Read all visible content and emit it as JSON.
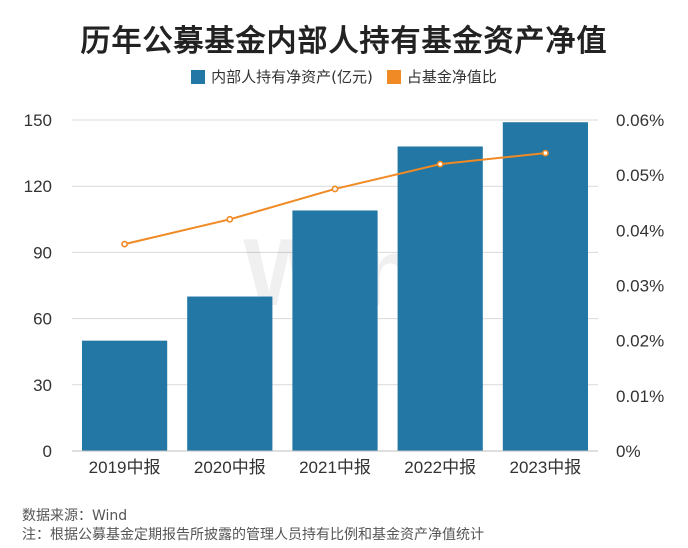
{
  "chart_data": {
    "type": "bar+line",
    "title": "历年公募基金内部人持有基金资产净值",
    "categories": [
      "2019中报",
      "2020中报",
      "2021中报",
      "2022中报",
      "2023中报"
    ],
    "series": [
      {
        "name": "内部人持有净资产(亿元)",
        "type": "bar",
        "axis": "left",
        "color": "#2277a4",
        "values": [
          50,
          70,
          109,
          138,
          149
        ]
      },
      {
        "name": "占基金净值比",
        "type": "line",
        "axis": "right",
        "color": "#f08a24",
        "values": [
          0.0375,
          0.042,
          0.0475,
          0.052,
          0.054
        ]
      }
    ],
    "left_axis": {
      "min": 0,
      "max": 150,
      "ticks": [
        "0",
        "30",
        "60",
        "90",
        "120",
        "150"
      ]
    },
    "right_axis": {
      "min": 0,
      "max": 0.06,
      "ticks": [
        "0%",
        "0.01%",
        "0.02%",
        "0.03%",
        "0.04%",
        "0.05%",
        "0.06%"
      ]
    },
    "grid": true,
    "legend_position": "top-center"
  },
  "watermark": "Wind",
  "footer": {
    "source": "数据来源：Wind",
    "note": "注：根据公募基金定期报告所披露的管理人员持有比例和基金资产净值统计"
  }
}
